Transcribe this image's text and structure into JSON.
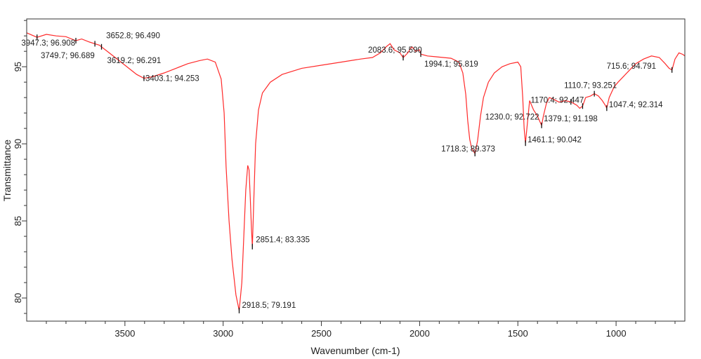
{
  "chart_data": {
    "type": "line",
    "title": "",
    "xlabel": "Wavenumber (cm-1)",
    "ylabel": "Transmittance",
    "xlim": [
      4000,
      650
    ],
    "ylim": [
      78.5,
      98.1
    ],
    "x_reversed": true,
    "grid": false,
    "line_color": "#ff2a2a",
    "x_ticks": [
      3500,
      3000,
      2500,
      2000,
      1500,
      1000
    ],
    "y_ticks": [
      80,
      85,
      90,
      95
    ],
    "series": [
      {
        "points": [
          [
            4000,
            97.2
          ],
          [
            3947.3,
            96.908
          ],
          [
            3900,
            97.1
          ],
          [
            3850,
            97.0
          ],
          [
            3800,
            96.95
          ],
          [
            3749.7,
            96.689
          ],
          [
            3720,
            96.8
          ],
          [
            3680,
            96.6
          ],
          [
            3652.8,
            96.49
          ],
          [
            3630,
            96.4
          ],
          [
            3619.2,
            96.291
          ],
          [
            3580,
            95.9
          ],
          [
            3530,
            95.4
          ],
          [
            3480,
            94.9
          ],
          [
            3440,
            94.5
          ],
          [
            3403.1,
            94.253
          ],
          [
            3360,
            94.35
          ],
          [
            3300,
            94.6
          ],
          [
            3240,
            94.9
          ],
          [
            3180,
            95.2
          ],
          [
            3120,
            95.4
          ],
          [
            3080,
            95.5
          ],
          [
            3040,
            95.3
          ],
          [
            3010,
            94.2
          ],
          [
            2995,
            92.0
          ],
          [
            2985,
            88.5
          ],
          [
            2970,
            85.0
          ],
          [
            2955,
            82.5
          ],
          [
            2935,
            80.2
          ],
          [
            2918.5,
            79.191
          ],
          [
            2905,
            81.0
          ],
          [
            2895,
            84.0
          ],
          [
            2885,
            87.0
          ],
          [
            2875,
            88.6
          ],
          [
            2868,
            88.3
          ],
          [
            2862,
            86.5
          ],
          [
            2856,
            84.5
          ],
          [
            2851.4,
            83.335
          ],
          [
            2845,
            86.0
          ],
          [
            2835,
            90.0
          ],
          [
            2820,
            92.2
          ],
          [
            2800,
            93.3
          ],
          [
            2760,
            94.0
          ],
          [
            2700,
            94.5
          ],
          [
            2600,
            94.9
          ],
          [
            2500,
            95.1
          ],
          [
            2400,
            95.3
          ],
          [
            2300,
            95.5
          ],
          [
            2240,
            95.6
          ],
          [
            2200,
            95.9
          ],
          [
            2170,
            96.3
          ],
          [
            2150,
            96.5
          ],
          [
            2130,
            96.1
          ],
          [
            2100,
            95.9
          ],
          [
            2083.6,
            95.59
          ],
          [
            2060,
            95.9
          ],
          [
            2040,
            96.3
          ],
          [
            2020,
            96.0
          ],
          [
            2000,
            96.1
          ],
          [
            1994.1,
            95.819
          ],
          [
            1960,
            95.7
          ],
          [
            1920,
            95.65
          ],
          [
            1880,
            95.6
          ],
          [
            1840,
            95.55
          ],
          [
            1800,
            95.3
          ],
          [
            1780,
            94.6
          ],
          [
            1765,
            93.2
          ],
          [
            1755,
            91.5
          ],
          [
            1745,
            90.3
          ],
          [
            1735,
            89.7
          ],
          [
            1718.3,
            89.373
          ],
          [
            1705,
            90.2
          ],
          [
            1690,
            91.8
          ],
          [
            1675,
            93.0
          ],
          [
            1650,
            94.0
          ],
          [
            1620,
            94.6
          ],
          [
            1580,
            95.0
          ],
          [
            1540,
            95.2
          ],
          [
            1500,
            95.3
          ],
          [
            1485,
            95.0
          ],
          [
            1475,
            93.0
          ],
          [
            1468,
            91.0
          ],
          [
            1461.1,
            90.042
          ],
          [
            1450,
            91.5
          ],
          [
            1440,
            92.8
          ],
          [
            1420,
            92.2
          ],
          [
            1400,
            91.8
          ],
          [
            1390,
            91.5
          ],
          [
            1379.1,
            91.198
          ],
          [
            1370,
            91.8
          ],
          [
            1355,
            92.6
          ],
          [
            1340,
            93.0
          ],
          [
            1320,
            92.9
          ],
          [
            1290,
            92.7
          ],
          [
            1260,
            92.8
          ],
          [
            1230,
            92.722
          ],
          [
            1200,
            92.5
          ],
          [
            1185,
            92.3
          ],
          [
            1170.4,
            92.447
          ],
          [
            1155,
            93.0
          ],
          [
            1130,
            93.1
          ],
          [
            1110.7,
            93.251
          ],
          [
            1090,
            93.1
          ],
          [
            1070,
            92.8
          ],
          [
            1055,
            92.5
          ],
          [
            1047.4,
            92.314
          ],
          [
            1035,
            93.0
          ],
          [
            1010,
            93.7
          ],
          [
            990,
            94.0
          ],
          [
            960,
            94.4
          ],
          [
            930,
            94.8
          ],
          [
            900,
            95.2
          ],
          [
            860,
            95.5
          ],
          [
            820,
            95.7
          ],
          [
            780,
            95.6
          ],
          [
            750,
            95.2
          ],
          [
            730,
            94.9
          ],
          [
            715.6,
            94.791
          ],
          [
            700,
            95.5
          ],
          [
            680,
            95.9
          ],
          [
            660,
            95.8
          ],
          [
            650,
            95.7
          ]
        ]
      }
    ],
    "annotations": [
      {
        "label": "3947.3; 96.908",
        "x": 3947.3,
        "y": 96.908
      },
      {
        "label": "3652.8; 96.490",
        "x": 3652.8,
        "y": 96.49
      },
      {
        "label": "3749.7; 96.689",
        "x": 3749.7,
        "y": 96.689
      },
      {
        "label": "3619.2; 96.291",
        "x": 3619.2,
        "y": 96.291
      },
      {
        "label": "3403.1; 94.253",
        "x": 3403.1,
        "y": 94.253
      },
      {
        "label": "2083.6; 95.590",
        "x": 2083.6,
        "y": 95.59
      },
      {
        "label": "1994.1; 95.819",
        "x": 1994.1,
        "y": 95.819
      },
      {
        "label": "2851.4; 83.335",
        "x": 2851.4,
        "y": 83.335
      },
      {
        "label": "2918.5; 79.191",
        "x": 2918.5,
        "y": 79.191
      },
      {
        "label": "1718.3; 89.373",
        "x": 1718.3,
        "y": 89.373
      },
      {
        "label": "1461.1; 90.042",
        "x": 1461.1,
        "y": 90.042
      },
      {
        "label": "1379.1; 91.198",
        "x": 1379.1,
        "y": 91.198
      },
      {
        "label": "1230.0; 92.722",
        "x": 1230.0,
        "y": 92.722
      },
      {
        "label": "1170.4; 92.447",
        "x": 1170.4,
        "y": 92.447
      },
      {
        "label": "1110.7; 93.251",
        "x": 1110.7,
        "y": 93.251
      },
      {
        "label": "1047.4; 92.314",
        "x": 1047.4,
        "y": 92.314
      },
      {
        "label": "715.6; 94.791",
        "x": 715.6,
        "y": 94.791
      }
    ]
  }
}
